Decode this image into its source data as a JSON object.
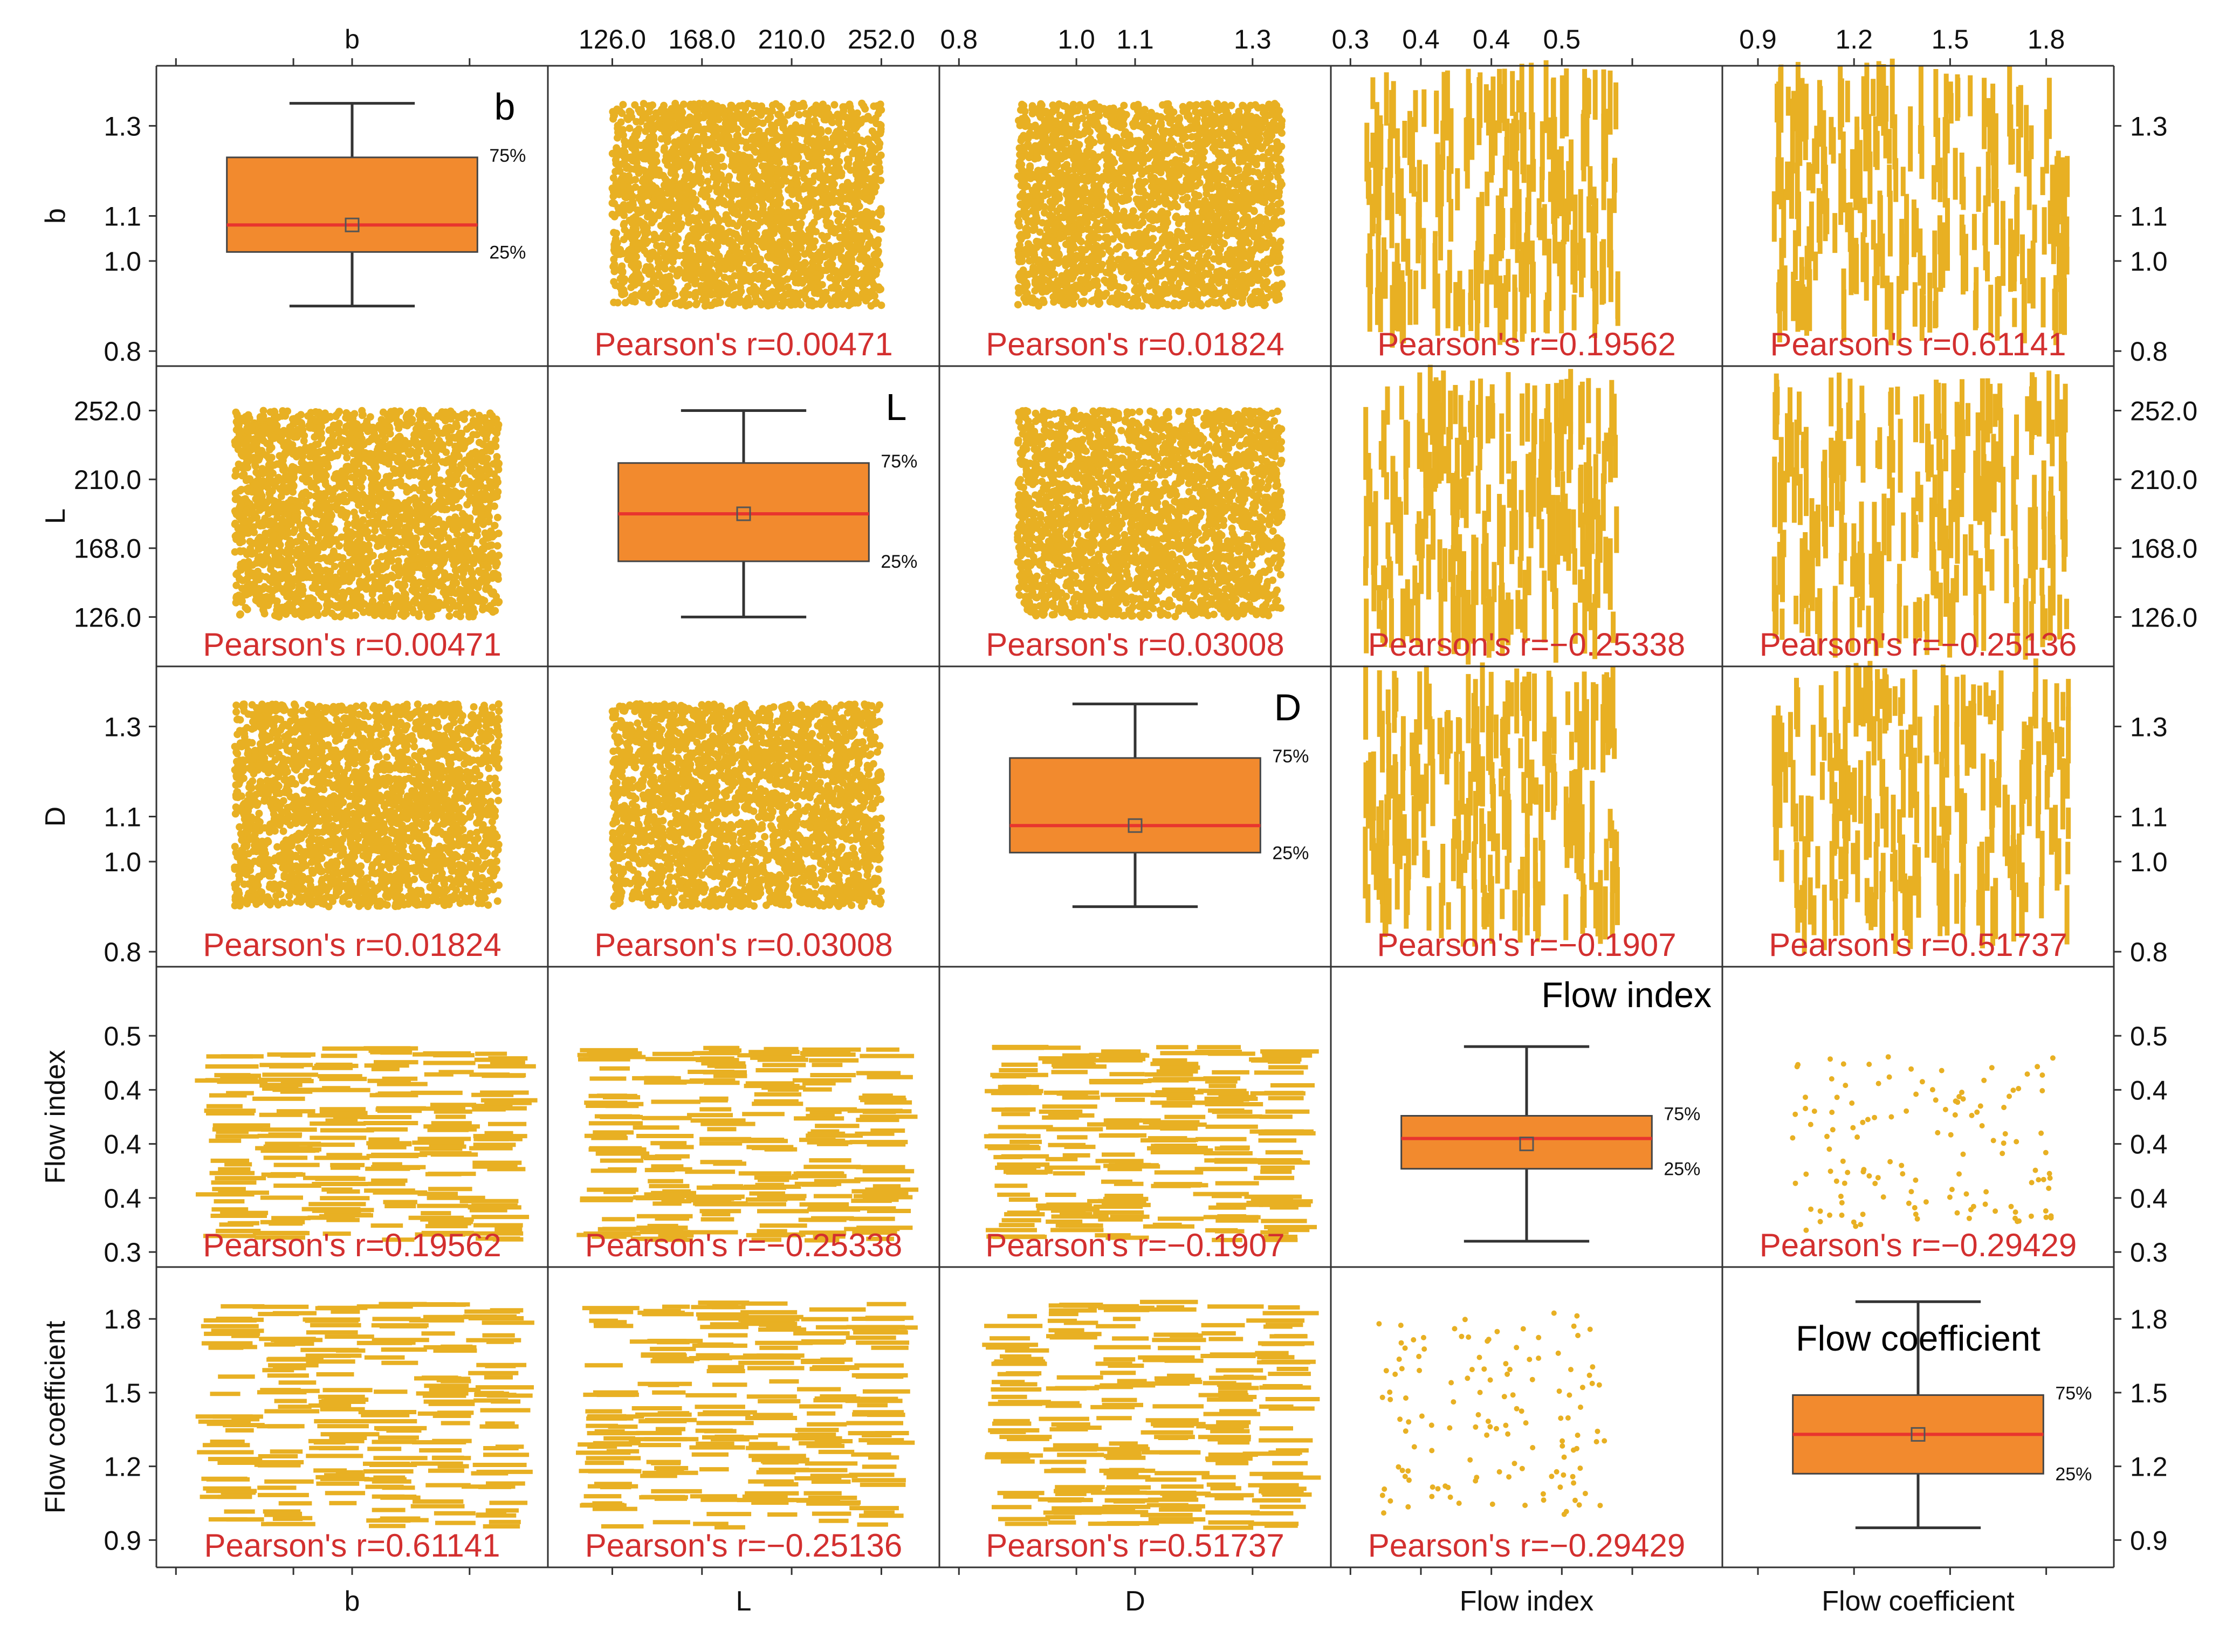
{
  "chart_data": {
    "type": "scatter",
    "variables": [
      "b",
      "L",
      "D",
      "Flow index",
      "Flow coefficient"
    ],
    "axes": [
      {
        "name": "b",
        "range": [
          0.8,
          1.4
        ],
        "ticks": [
          0.8,
          1.0,
          1.1,
          1.3
        ],
        "tick_labels": [
          "0.8",
          "1.0",
          "1.1",
          "1.3"
        ],
        "top_labels": [
          "b"
        ]
      },
      {
        "name": "L",
        "range": [
          105,
          270
        ],
        "ticks": [
          126,
          168,
          210,
          252
        ],
        "tick_labels": [
          "126.0",
          "168.0",
          "210.0",
          "252.0"
        ],
        "top_labels": [
          "126.0",
          "168.0",
          "210.0",
          "252.0"
        ]
      },
      {
        "name": "D",
        "range": [
          0.8,
          1.4
        ],
        "ticks": [
          0.8,
          1.0,
          1.1,
          1.3
        ],
        "tick_labels": [
          "0.8",
          "1.0",
          "1.1",
          "1.3"
        ],
        "top_labels": [
          "0.8",
          "1.0",
          "1.1",
          "1.3"
        ]
      },
      {
        "name": "Flow index",
        "range": [
          0.3,
          0.55
        ],
        "ticks": [
          0.3,
          0.35,
          0.4,
          0.45,
          0.5
        ],
        "tick_labels": [
          "0.3",
          "0.4",
          "0.4",
          "0.4",
          "0.5"
        ],
        "top_labels": [
          "0.3",
          "0.4",
          "0.4",
          "0.5"
        ]
      },
      {
        "name": "Flow coefficient",
        "range": [
          0.85,
          1.95
        ],
        "ticks": [
          0.9,
          1.2,
          1.5,
          1.8
        ],
        "tick_labels": [
          "0.9",
          "1.2",
          "1.5",
          "1.8"
        ],
        "top_labels": [
          "0.9",
          "1.2",
          "1.5",
          "1.8"
        ]
      }
    ],
    "correlations": [
      [
        "",
        "0.00471",
        "0.01824",
        "0.19562",
        "0.61141"
      ],
      [
        "0.00471",
        "",
        "0.03008",
        "−0.25338",
        "−0.25136"
      ],
      [
        "0.01824",
        "0.03008",
        "",
        "−0.1907",
        "0.51737"
      ],
      [
        "0.19562",
        "−0.25338",
        "−0.1907",
        "",
        "−0.29429"
      ],
      [
        "0.61141",
        "−0.25136",
        "0.51737",
        "−0.29429",
        ""
      ]
    ],
    "correlation_prefix": "Pearson's r=",
    "boxplots": [
      {
        "variable": "b",
        "min": 0.9,
        "q1": 1.02,
        "median": 1.08,
        "mean": 1.08,
        "q3": 1.23,
        "max": 1.35
      },
      {
        "variable": "L",
        "min": 126,
        "q1": 160,
        "median": 189,
        "mean": 189,
        "q3": 220,
        "max": 252
      },
      {
        "variable": "D",
        "min": 0.9,
        "q1": 1.02,
        "median": 1.08,
        "mean": 1.08,
        "q3": 1.23,
        "max": 1.35
      },
      {
        "variable": "Flow index",
        "min": 0.31,
        "q1": 0.377,
        "median": 0.405,
        "mean": 0.4,
        "q3": 0.426,
        "max": 0.49
      },
      {
        "variable": "Flow coefficient",
        "min": 0.95,
        "q1": 1.17,
        "median": 1.33,
        "mean": 1.33,
        "q3": 1.49,
        "max": 1.87
      }
    ],
    "percentile_labels": {
      "upper": "75%",
      "lower": "25%"
    },
    "diagonal_titles": [
      "b",
      "L",
      "D",
      "Flow index",
      "Flow coefficient"
    ],
    "grid": false,
    "legend": "none"
  },
  "colors": {
    "points": "#e8b023",
    "box_fill": "#f28a2e",
    "median_line": "#e8352e",
    "annotation": "#d32f2f",
    "frame": "#333333"
  }
}
